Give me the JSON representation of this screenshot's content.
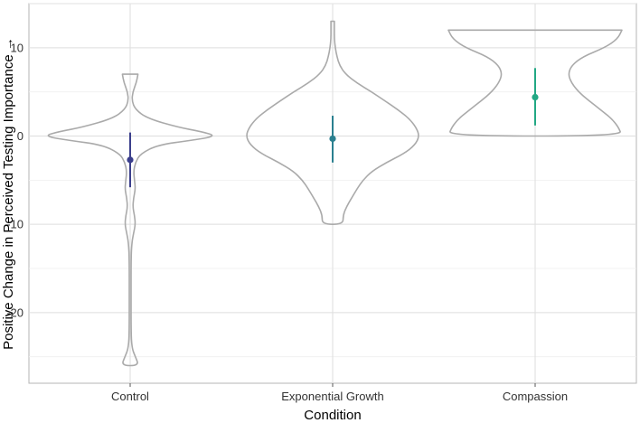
{
  "chart_data": {
    "type": "violin",
    "title": "",
    "xlabel": "Condition",
    "ylabel": "Positive Change in Perceived Testing Importance →",
    "categories": [
      "Control",
      "Exponential Growth",
      "Compassion"
    ],
    "ylim": [
      -28,
      15
    ],
    "yticks": [
      10,
      0,
      -10,
      -20
    ],
    "grid": true,
    "legend": "none",
    "violin_color": "#aaaaaa",
    "series": [
      {
        "category": "Control",
        "color": "#3b3f8c",
        "mean": -2.7,
        "ci": [
          -5.8,
          0.4
        ],
        "range": [
          -26,
          7
        ],
        "density": [
          [
            7,
            0.09
          ],
          [
            6,
            0.07
          ],
          [
            5,
            0.03
          ],
          [
            4,
            0.02
          ],
          [
            3,
            0.06
          ],
          [
            2,
            0.2
          ],
          [
            1,
            0.55
          ],
          [
            0.5,
            0.82
          ],
          [
            0,
            1.0
          ],
          [
            -0.5,
            0.7
          ],
          [
            -1,
            0.32
          ],
          [
            -2,
            0.12
          ],
          [
            -3,
            0.06
          ],
          [
            -4,
            0.04
          ],
          [
            -5,
            0.05
          ],
          [
            -6,
            0.06
          ],
          [
            -7,
            0.04
          ],
          [
            -8,
            0.03
          ],
          [
            -9,
            0.05
          ],
          [
            -10,
            0.06
          ],
          [
            -11,
            0.04
          ],
          [
            -12,
            0.02
          ],
          [
            -14,
            0.01
          ],
          [
            -18,
            0.01
          ],
          [
            -22,
            0.01
          ],
          [
            -24,
            0.02
          ],
          [
            -25,
            0.06
          ],
          [
            -26,
            0.1
          ]
        ]
      },
      {
        "category": "Exponential Growth",
        "color": "#2a7f8f",
        "mean": -0.3,
        "ci": [
          -3.0,
          2.3
        ],
        "range": [
          -10,
          13
        ],
        "density": [
          [
            13,
            0.02
          ],
          [
            12,
            0.02
          ],
          [
            11,
            0.02
          ],
          [
            10,
            0.03
          ],
          [
            9,
            0.05
          ],
          [
            8,
            0.08
          ],
          [
            7,
            0.15
          ],
          [
            6,
            0.28
          ],
          [
            5,
            0.45
          ],
          [
            4,
            0.6
          ],
          [
            3,
            0.75
          ],
          [
            2,
            0.88
          ],
          [
            1,
            0.96
          ],
          [
            0,
            1.0
          ],
          [
            -1,
            0.95
          ],
          [
            -2,
            0.82
          ],
          [
            -3,
            0.62
          ],
          [
            -4,
            0.45
          ],
          [
            -5,
            0.35
          ],
          [
            -6,
            0.28
          ],
          [
            -7,
            0.22
          ],
          [
            -8,
            0.16
          ],
          [
            -9,
            0.12
          ],
          [
            -10,
            0.12
          ]
        ]
      },
      {
        "category": "Compassion",
        "color": "#22a884",
        "mean": 4.4,
        "ci": [
          1.2,
          7.7
        ],
        "range": [
          0,
          12
        ],
        "density": [
          [
            12,
            1.0
          ],
          [
            11,
            0.95
          ],
          [
            10,
            0.8
          ],
          [
            9,
            0.55
          ],
          [
            8,
            0.42
          ],
          [
            7,
            0.38
          ],
          [
            6,
            0.42
          ],
          [
            5,
            0.5
          ],
          [
            4,
            0.62
          ],
          [
            3,
            0.75
          ],
          [
            2,
            0.88
          ],
          [
            1,
            0.96
          ],
          [
            0,
            1.0
          ]
        ]
      }
    ]
  }
}
